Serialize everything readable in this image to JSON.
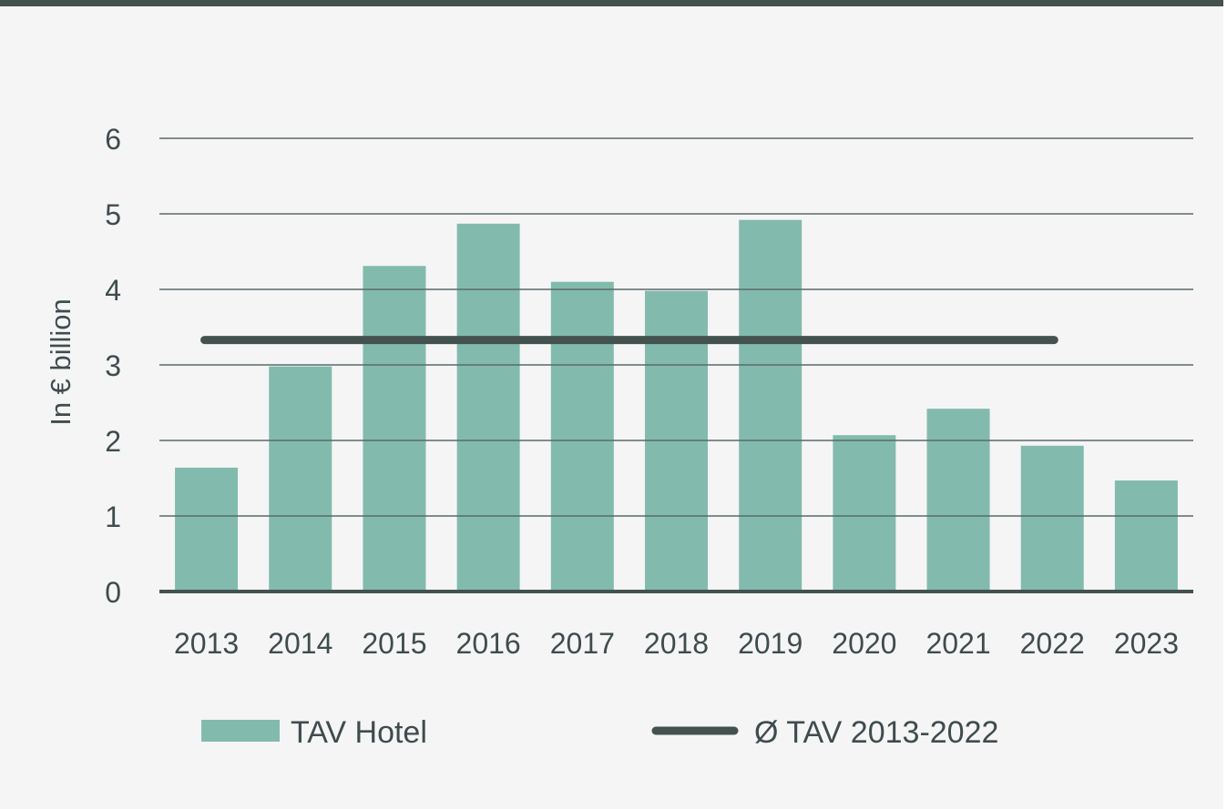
{
  "chart_data": {
    "type": "bar",
    "title": "",
    "xlabel": "",
    "ylabel": "In € billion",
    "ylim": [
      0,
      6
    ],
    "yticks": [
      "0",
      "1",
      "2",
      "3",
      "4",
      "5",
      "6"
    ],
    "grid": true,
    "categories": [
      "2013",
      "2014",
      "2015",
      "2016",
      "2017",
      "2018",
      "2019",
      "2020",
      "2021",
      "2022",
      "2023"
    ],
    "series": [
      {
        "name": "TAV Hotel",
        "type": "bar",
        "color": "#82bbad",
        "values": [
          1.64,
          2.98,
          4.31,
          4.87,
          4.1,
          3.98,
          4.92,
          2.07,
          2.42,
          1.93,
          1.47
        ]
      },
      {
        "name": "Ø TAV 2013-2022",
        "type": "line",
        "color": "#44524f",
        "value": 3.33,
        "range": [
          "2013",
          "2022"
        ]
      }
    ],
    "legend_position": "bottom"
  }
}
